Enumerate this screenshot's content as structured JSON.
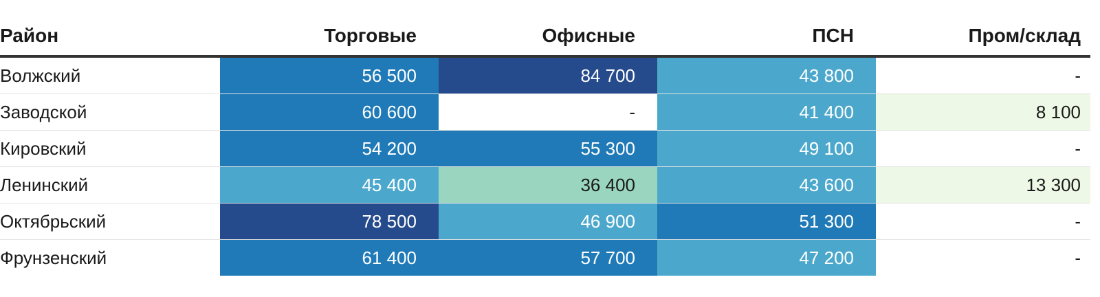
{
  "chart_data": {
    "type": "table",
    "columns": [
      "Район",
      "Торговые",
      "Офисные",
      "ПСН",
      "Пром/склад"
    ],
    "rows": [
      {
        "district": "Волжский",
        "values": [
          "56 500",
          "84 700",
          "43 800",
          "-"
        ]
      },
      {
        "district": "Заводской",
        "values": [
          "60 600",
          "-",
          "41 400",
          "8 100"
        ]
      },
      {
        "district": "Кировский",
        "values": [
          "54 200",
          "55 300",
          "49 100",
          "-"
        ]
      },
      {
        "district": "Ленинский",
        "values": [
          "45 400",
          "36 400",
          "43 600",
          "13 300"
        ]
      },
      {
        "district": "Октябрьский",
        "values": [
          "78 500",
          "46 900",
          "51 300",
          "-"
        ]
      },
      {
        "district": "Фрунзенский",
        "values": [
          "61 400",
          "57 700",
          "47 200",
          "-"
        ]
      }
    ],
    "color_scale": [
      {
        "min": 70000,
        "fill": "#264b8c",
        "text": "#ffffff"
      },
      {
        "min": 50000,
        "fill": "#1f7ab7",
        "text": "#ffffff"
      },
      {
        "min": 40000,
        "fill": "#4ba8cc",
        "text": "#ffffff"
      },
      {
        "min": 20000,
        "fill": "#99d5bf",
        "text": "#1a1a1a"
      },
      {
        "min": 1,
        "fill": "#eef8e6",
        "text": "#1a1a1a"
      },
      {
        "min": 0,
        "fill": "#ffffff",
        "text": "#1a1a1a"
      }
    ]
  }
}
